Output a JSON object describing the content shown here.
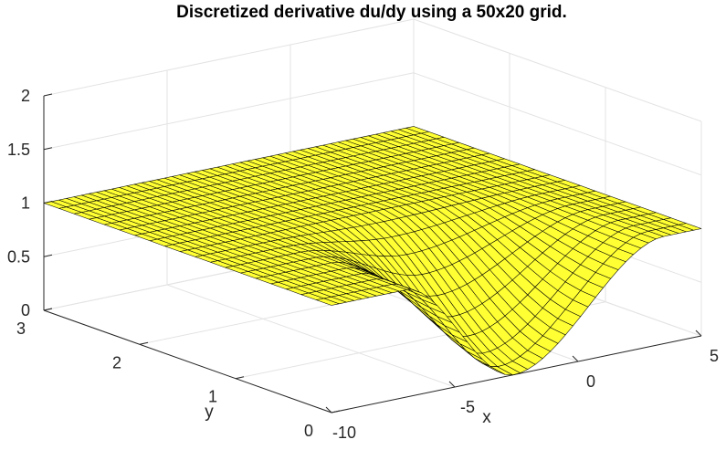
{
  "chart_data": {
    "type": "surface",
    "title": "Discretized derivative du/dy using a 50x20 grid.",
    "xlabel": "x",
    "ylabel": "y",
    "zlabel": "",
    "xlim": [
      -10,
      5
    ],
    "ylim": [
      0,
      3
    ],
    "zlim": [
      0,
      2
    ],
    "x_ticks": [
      -10,
      -5,
      0,
      5
    ],
    "y_ticks": [
      0,
      1,
      2,
      3
    ],
    "z_ticks": [
      0,
      0.5,
      1,
      1.5,
      2
    ],
    "x_tick_labels": [
      "-10",
      "-5",
      "0",
      "5"
    ],
    "y_tick_labels": [
      "0",
      "1",
      "2",
      "3"
    ],
    "z_tick_labels": [
      "0",
      "0.5",
      "1",
      "1.5",
      "2"
    ],
    "grid": "on",
    "grid_size": {
      "nx": 50,
      "ny": 20
    },
    "surface": {
      "baseline": 1.0,
      "min_value": 0.0,
      "min_at_x": -2.6,
      "min_at_y": 0.0,
      "flat_region_x": [
        -10,
        -7
      ],
      "recovered_x": 3.5,
      "flat_region_y": [
        1.6,
        3
      ]
    },
    "colors": {
      "face": "#ffff33",
      "edge": "#000000"
    }
  }
}
